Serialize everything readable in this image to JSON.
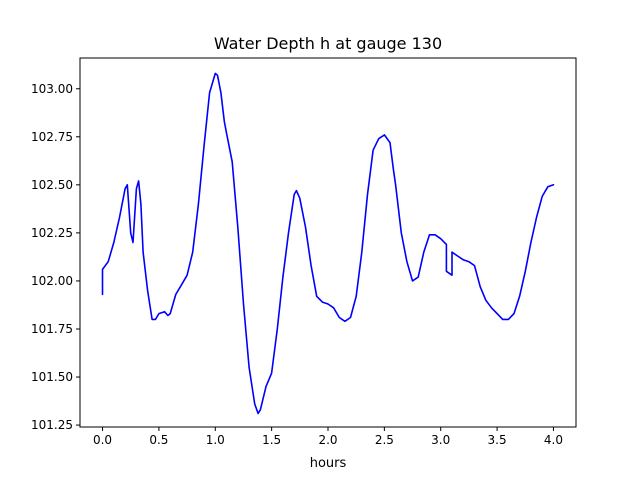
{
  "chart_data": {
    "type": "line",
    "title": "Water Depth h at gauge 130",
    "xlabel": "hours",
    "ylabel": "",
    "xlim": [
      -0.2,
      4.2
    ],
    "ylim": [
      101.24,
      103.16
    ],
    "xticks": [
      0.0,
      0.5,
      1.0,
      1.5,
      2.0,
      2.5,
      3.0,
      3.5,
      4.0
    ],
    "xtick_labels": [
      "0.0",
      "0.5",
      "1.0",
      "1.5",
      "2.0",
      "2.5",
      "3.0",
      "3.5",
      "4.0"
    ],
    "yticks": [
      101.25,
      101.5,
      101.75,
      102.0,
      102.25,
      102.5,
      102.75,
      103.0
    ],
    "ytick_labels": [
      "101.25",
      "101.50",
      "101.75",
      "102.00",
      "102.25",
      "102.50",
      "102.75",
      "103.00"
    ],
    "grid": false,
    "series": [
      {
        "color": "#0000ff",
        "x": [
          0.0,
          0.0,
          0.05,
          0.1,
          0.15,
          0.2,
          0.22,
          0.25,
          0.27,
          0.3,
          0.32,
          0.34,
          0.36,
          0.4,
          0.44,
          0.47,
          0.5,
          0.55,
          0.58,
          0.6,
          0.65,
          0.7,
          0.75,
          0.8,
          0.85,
          0.9,
          0.95,
          1.0,
          1.02,
          1.05,
          1.08,
          1.1,
          1.15,
          1.2,
          1.25,
          1.3,
          1.35,
          1.38,
          1.4,
          1.45,
          1.5,
          1.55,
          1.6,
          1.65,
          1.7,
          1.72,
          1.75,
          1.8,
          1.85,
          1.9,
          1.95,
          2.0,
          2.05,
          2.1,
          2.15,
          2.2,
          2.25,
          2.3,
          2.35,
          2.4,
          2.45,
          2.5,
          2.55,
          2.58,
          2.6,
          2.65,
          2.7,
          2.75,
          2.8,
          2.85,
          2.9,
          2.95,
          3.0,
          3.05,
          3.05,
          3.1,
          3.1,
          3.15,
          3.2,
          3.25,
          3.3,
          3.35,
          3.4,
          3.45,
          3.5,
          3.55,
          3.6,
          3.65,
          3.7,
          3.75,
          3.8,
          3.85,
          3.9,
          3.95,
          4.0
        ],
        "y": [
          101.93,
          102.06,
          102.1,
          102.2,
          102.33,
          102.48,
          102.5,
          102.25,
          102.2,
          102.48,
          102.52,
          102.4,
          102.15,
          101.95,
          101.8,
          101.8,
          101.83,
          101.84,
          101.82,
          101.83,
          101.93,
          101.98,
          102.03,
          102.15,
          102.4,
          102.7,
          102.98,
          103.08,
          103.07,
          102.98,
          102.83,
          102.77,
          102.62,
          102.28,
          101.88,
          101.55,
          101.36,
          101.31,
          101.33,
          101.45,
          101.52,
          101.75,
          102.02,
          102.25,
          102.45,
          102.47,
          102.43,
          102.28,
          102.08,
          101.92,
          101.89,
          101.88,
          101.86,
          101.81,
          101.79,
          101.81,
          101.92,
          102.15,
          102.45,
          102.68,
          102.74,
          102.76,
          102.72,
          102.58,
          102.5,
          102.25,
          102.1,
          102.0,
          102.02,
          102.15,
          102.24,
          102.24,
          102.22,
          102.19,
          102.05,
          102.03,
          102.15,
          102.13,
          102.11,
          102.1,
          102.08,
          101.97,
          101.9,
          101.86,
          101.83,
          101.8,
          101.8,
          101.83,
          101.92,
          102.05,
          102.2,
          102.33,
          102.44,
          102.49,
          102.5
        ]
      }
    ]
  }
}
